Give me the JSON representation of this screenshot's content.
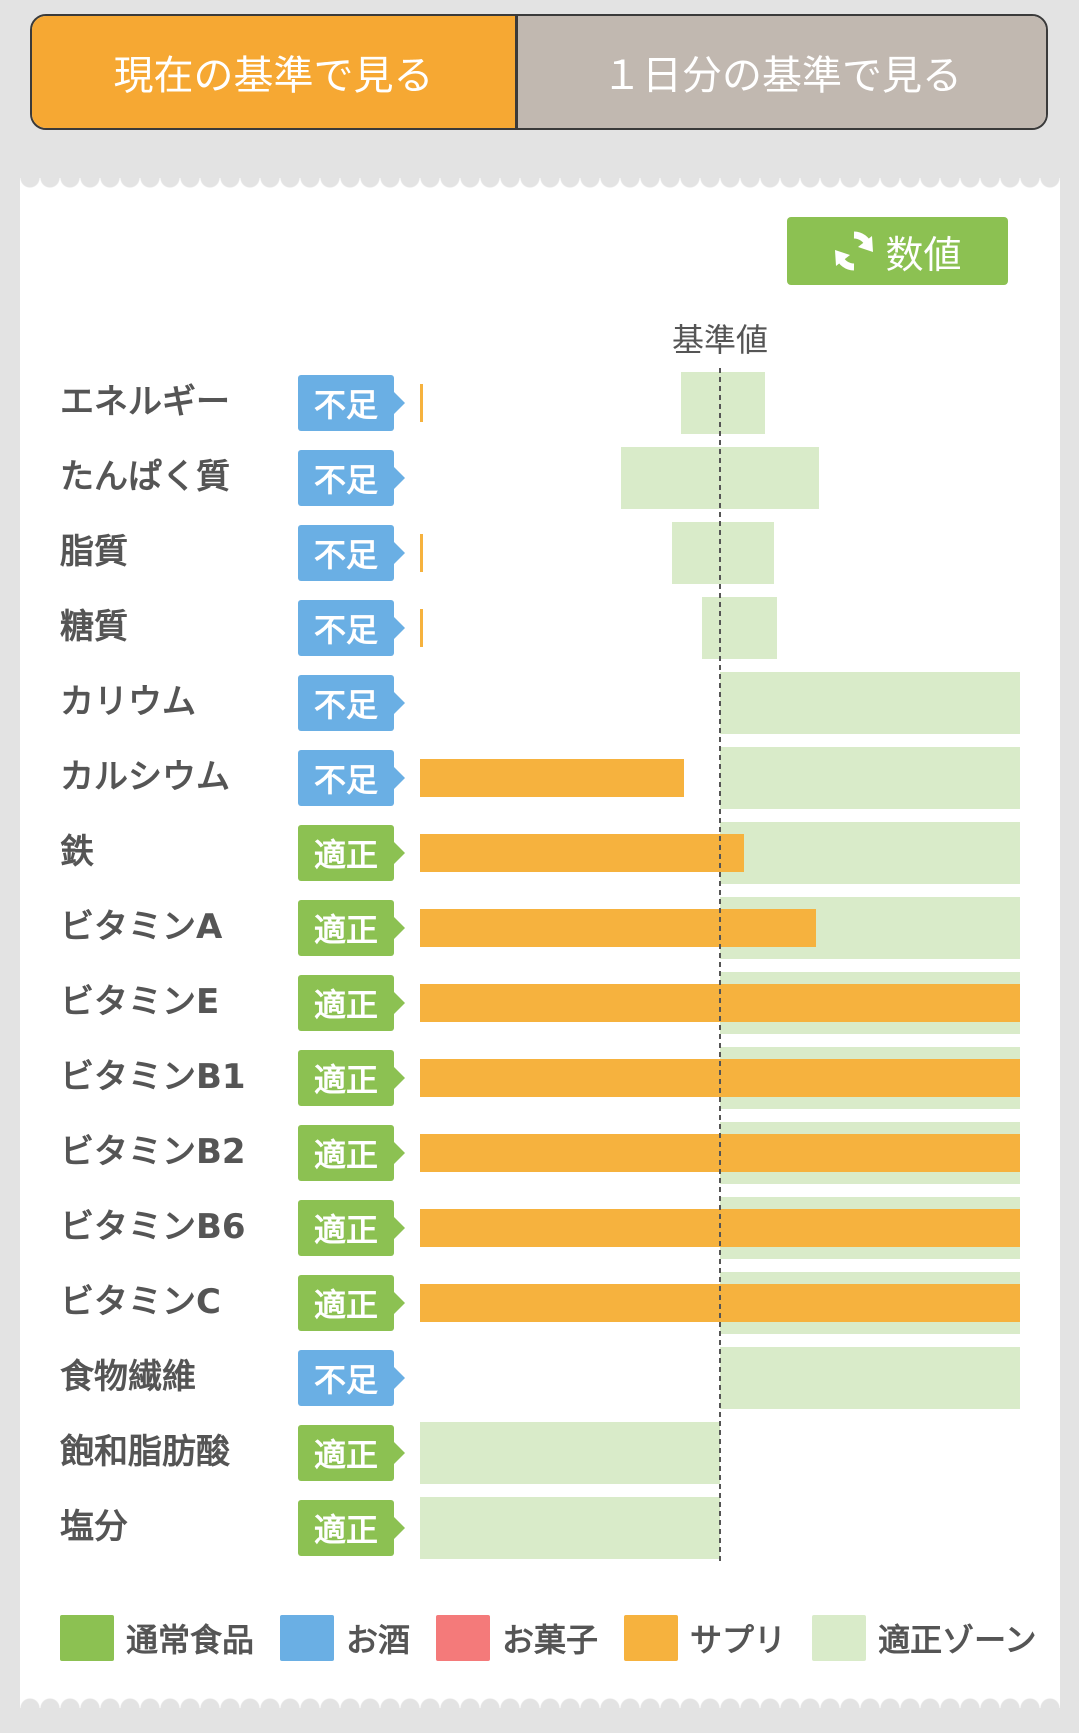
{
  "tabs": [
    {
      "label": "現在の基準で見る",
      "active": true
    },
    {
      "label": "１日分の基準で見る",
      "active": false
    }
  ],
  "toggle": {
    "label": "数値",
    "icon": "refresh-icon"
  },
  "colors": {
    "normal_food": "#8cc152",
    "alcohol": "#6aafe4",
    "sweets": "#f47a7a",
    "supplement": "#f6b23e",
    "proper_zone": "#d9ebc9",
    "badge_low": "#6aafe4",
    "badge_ok": "#8cc152",
    "tab_active": "#f6a833",
    "tab_inactive": "#c1b8b0"
  },
  "chart_data": {
    "type": "bar",
    "orientation": "horizontal",
    "reference_label": "基準値",
    "units": "percent of reference (reference = 100)",
    "xlim": [
      0,
      200
    ],
    "rows": [
      {
        "label": "エネルギー",
        "status": "不足",
        "status_kind": "low",
        "supplement": 1,
        "zone": [
          87,
          115
        ]
      },
      {
        "label": "たんぱく質",
        "status": "不足",
        "status_kind": "low",
        "supplement": 0,
        "zone": [
          67,
          133
        ]
      },
      {
        "label": "脂質",
        "status": "不足",
        "status_kind": "low",
        "supplement": 1,
        "zone": [
          84,
          118
        ]
      },
      {
        "label": "糖質",
        "status": "不足",
        "status_kind": "low",
        "supplement": 1,
        "zone": [
          94,
          119
        ]
      },
      {
        "label": "カリウム",
        "status": "不足",
        "status_kind": "low",
        "supplement": 0,
        "zone": [
          100,
          200
        ]
      },
      {
        "label": "カルシウム",
        "status": "不足",
        "status_kind": "low",
        "supplement": 88,
        "zone": [
          100,
          200
        ]
      },
      {
        "label": "鉄",
        "status": "適正",
        "status_kind": "ok",
        "supplement": 108,
        "zone": [
          100,
          200
        ]
      },
      {
        "label": "ビタミンA",
        "status": "適正",
        "status_kind": "ok",
        "supplement": 132,
        "zone": [
          100,
          200
        ]
      },
      {
        "label": "ビタミンE",
        "status": "適正",
        "status_kind": "ok",
        "supplement": 200,
        "zone": [
          100,
          200
        ]
      },
      {
        "label": "ビタミンB1",
        "status": "適正",
        "status_kind": "ok",
        "supplement": 200,
        "zone": [
          100,
          200
        ]
      },
      {
        "label": "ビタミンB2",
        "status": "適正",
        "status_kind": "ok",
        "supplement": 200,
        "zone": [
          100,
          200
        ]
      },
      {
        "label": "ビタミンB6",
        "status": "適正",
        "status_kind": "ok",
        "supplement": 200,
        "zone": [
          100,
          200
        ]
      },
      {
        "label": "ビタミンC",
        "status": "適正",
        "status_kind": "ok",
        "supplement": 200,
        "zone": [
          100,
          200
        ]
      },
      {
        "label": "食物繊維",
        "status": "不足",
        "status_kind": "low",
        "supplement": 0,
        "zone": [
          100,
          200
        ]
      },
      {
        "label": "飽和脂肪酸",
        "status": "適正",
        "status_kind": "ok",
        "supplement": 0,
        "zone": [
          0,
          100
        ]
      },
      {
        "label": "塩分",
        "status": "適正",
        "status_kind": "ok",
        "supplement": 0,
        "zone": [
          0,
          100
        ]
      }
    ],
    "legend": [
      {
        "label": "通常食品",
        "color": "#8cc152"
      },
      {
        "label": "お酒",
        "color": "#6aafe4"
      },
      {
        "label": "お菓子",
        "color": "#f47a7a"
      },
      {
        "label": "サプリ",
        "color": "#f6b23e"
      },
      {
        "label": "適正ゾーン",
        "color": "#d9ebc9"
      }
    ]
  }
}
